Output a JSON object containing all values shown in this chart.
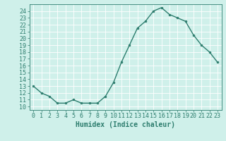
{
  "x": [
    0,
    1,
    2,
    3,
    4,
    5,
    6,
    7,
    8,
    9,
    10,
    11,
    12,
    13,
    14,
    15,
    16,
    17,
    18,
    19,
    20,
    21,
    22,
    23
  ],
  "y": [
    13,
    12,
    11.5,
    10.5,
    10.5,
    11,
    10.5,
    10.5,
    10.5,
    11.5,
    13.5,
    16.5,
    19,
    21.5,
    22.5,
    24,
    24.5,
    23.5,
    23,
    22.5,
    20.5,
    19,
    18,
    16.5
  ],
  "line_color": "#2d7d6e",
  "marker_color": "#2d7d6e",
  "bg_color": "#cff0ea",
  "grid_color": "#ffffff",
  "xlabel": "Humidex (Indice chaleur)",
  "ylim": [
    9.5,
    25.0
  ],
  "xlim": [
    -0.5,
    23.5
  ],
  "yticks": [
    10,
    11,
    12,
    13,
    14,
    15,
    16,
    17,
    18,
    19,
    20,
    21,
    22,
    23,
    24
  ],
  "xticks": [
    0,
    1,
    2,
    3,
    4,
    5,
    6,
    7,
    8,
    9,
    10,
    11,
    12,
    13,
    14,
    15,
    16,
    17,
    18,
    19,
    20,
    21,
    22,
    23
  ],
  "xlabel_fontsize": 7,
  "tick_fontsize": 6,
  "linewidth": 1.0,
  "markersize": 2.0
}
